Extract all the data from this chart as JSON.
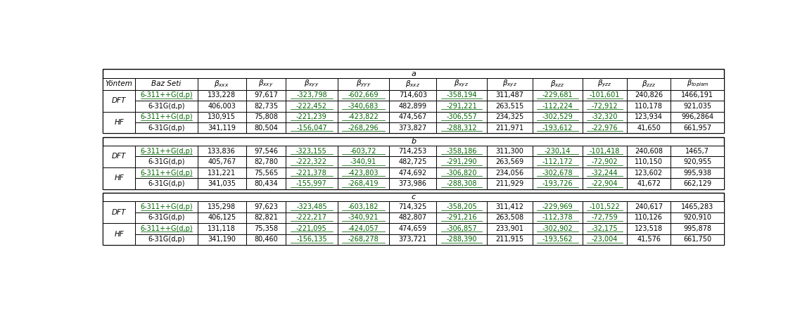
{
  "sections": [
    {
      "label": "a",
      "has_header": true,
      "rows": [
        [
          "DFT",
          "6-311++G(d,p)",
          "133,228",
          "97,617",
          "-323,798",
          "-602,669",
          "714,603",
          "-358,194",
          "311,487",
          "-229,681",
          "-101,601",
          "240,826",
          "1466,191"
        ],
        [
          "DFT",
          "6-31G(d,p)",
          "406,003",
          "82,735",
          "-222,452",
          "-340,683",
          "482,899",
          "-291,221",
          "263,515",
          "-112,224",
          "-72,912",
          "110,178",
          "921,035"
        ],
        [
          "HF",
          "6-311++G(d,p)",
          "130,915",
          "75,808",
          "-221,239",
          "-423,822",
          "474,567",
          "-306,557",
          "234,325",
          "-302,529",
          "-32,320",
          "123,934",
          "996,2864"
        ],
        [
          "HF",
          "6-31G(d,p)",
          "341,119",
          "80,504",
          "-156,047",
          "-268,296",
          "373,827",
          "-288,312",
          "211,971",
          "-193,612",
          "-22,976",
          "41,650",
          "661,957"
        ]
      ]
    },
    {
      "label": "b",
      "has_header": false,
      "rows": [
        [
          "DFT",
          "6-311++G(d,p)",
          "133,836",
          "97,546",
          "-323,155",
          "-603,72",
          "714,253",
          "-358,186",
          "311,300",
          "-230,14",
          "-101,418",
          "240,608",
          "1465,7"
        ],
        [
          "DFT",
          "6-31G(d,p)",
          "405,767",
          "82,780",
          "-222,322",
          "-340,91",
          "482,725",
          "-291,290",
          "263,569",
          "-112,172",
          "-72,902",
          "110,150",
          "920,955"
        ],
        [
          "HF",
          "6-311++G(d,p)",
          "131,221",
          "75,565",
          "-221,378",
          "-423,803",
          "474,692",
          "-306,820",
          "234,056",
          "-302,678",
          "-32,244",
          "123,602",
          "995,938"
        ],
        [
          "HF",
          "6-31G(d,p)",
          "341,035",
          "80,434",
          "-155,997",
          "-268,419",
          "373,986",
          "-288,308",
          "211,929",
          "-193,726",
          "-22,904",
          "41,672",
          "662,129"
        ]
      ]
    },
    {
      "label": "c",
      "has_header": false,
      "rows": [
        [
          "DFT",
          "6-311++G(d,p)",
          "135,298",
          "97,623",
          "-323,485",
          "-603,182",
          "714,325",
          "-358,205",
          "311,412",
          "-229,969",
          "-101,522",
          "240,617",
          "1465,283"
        ],
        [
          "DFT",
          "6-31G(d,p)",
          "406,125",
          "82,821",
          "-222,217",
          "-340,921",
          "482,807",
          "-291,216",
          "263,508",
          "-112,378",
          "-72,759",
          "110,126",
          "920,910"
        ],
        [
          "HF",
          "6-311++G(d,p)",
          "131,118",
          "75,358",
          "-221,095",
          "-424,057",
          "474,659",
          "-306,857",
          "233,901",
          "-302,902",
          "-32,175",
          "123,518",
          "995,878"
        ],
        [
          "HF",
          "6-31G(d,p)",
          "341,190",
          "80,460",
          "-156,135",
          "-268,278",
          "373,721",
          "-288,390",
          "211,915",
          "-193,562",
          "-23,004",
          "41,576",
          "661,750"
        ]
      ]
    }
  ],
  "bg_color": "#ffffff",
  "text_color": "#000000",
  "green_color": "#006400",
  "fontsize": 7.5,
  "header_subs": [
    "xxx",
    "xxy",
    "xyy",
    "yyy",
    "xxz",
    "xyz",
    "xyz",
    "xzz",
    "yzz",
    "zzz",
    "toplam"
  ]
}
